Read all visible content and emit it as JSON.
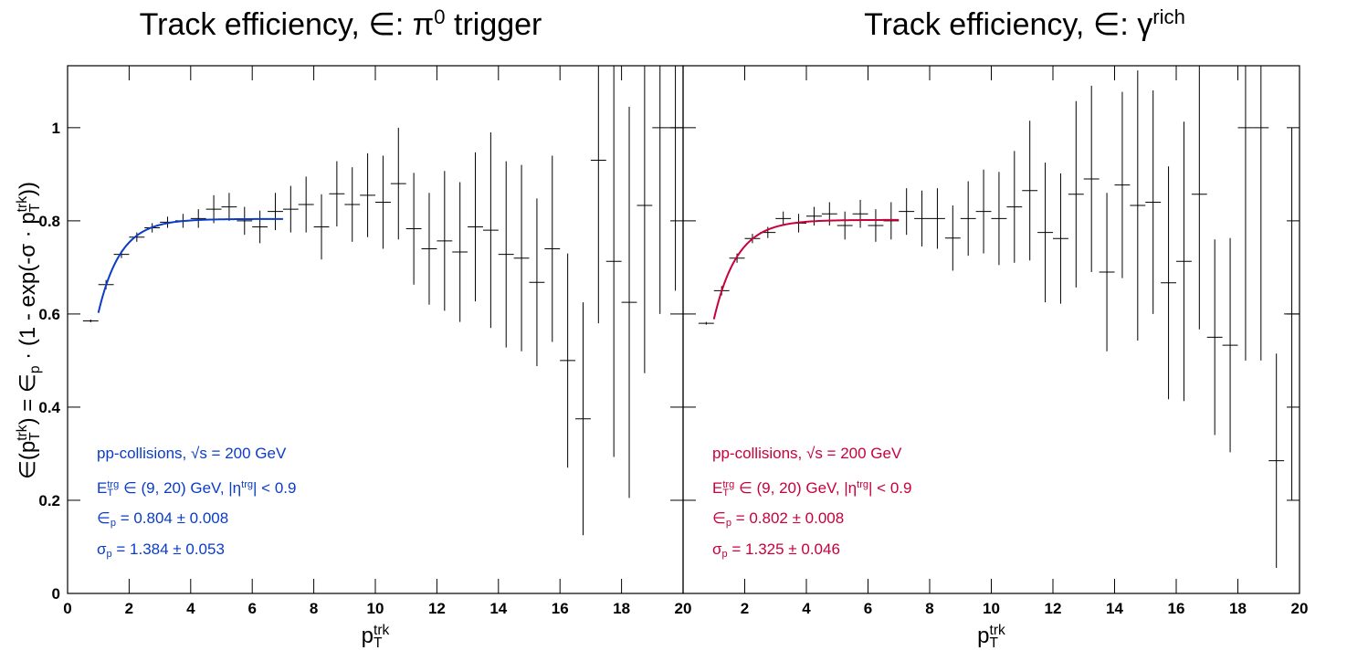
{
  "chart_data": [
    {
      "type": "errorbar",
      "title": [
        {
          "t": "Track efficiency, ∈: π"
        },
        {
          "t": "0",
          "s": "sup"
        },
        {
          "t": " trigger"
        }
      ],
      "xlabel": [
        {
          "t": "p"
        },
        {
          "t": "T",
          "s": "sub"
        },
        {
          "t": "trk",
          "s": "sup"
        }
      ],
      "ylabel": [
        {
          "t": "∈(p"
        },
        {
          "t": "T",
          "s": "sub"
        },
        {
          "t": "trk",
          "s": "sup"
        },
        {
          "t": ") = ∈"
        },
        {
          "t": "p",
          "s": "sub"
        },
        {
          "t": " · (1 - exp(-σ · p"
        },
        {
          "t": "T",
          "s": "sub"
        },
        {
          "t": "trk",
          "s": "sup"
        },
        {
          "t": "))"
        }
      ],
      "color": "#0a3cc8",
      "xlim": [
        0,
        20
      ],
      "ylim": [
        0,
        1.133
      ],
      "xticks": [
        0,
        2,
        4,
        6,
        8,
        10,
        12,
        14,
        16,
        18,
        20
      ],
      "yticks": [
        0,
        0.2,
        0.4,
        0.6,
        0.8,
        1
      ],
      "show_ytick_labels": true,
      "xerr": 0.25,
      "x": [
        0.75,
        1.25,
        1.75,
        2.25,
        2.75,
        3.25,
        3.75,
        4.25,
        4.75,
        5.25,
        5.75,
        6.25,
        6.75,
        7.25,
        7.75,
        8.25,
        8.75,
        9.25,
        9.75,
        10.25,
        10.75,
        11.25,
        11.75,
        12.25,
        12.75,
        13.25,
        13.75,
        14.25,
        14.75,
        15.25,
        15.75,
        16.25,
        16.75,
        17.25,
        17.75,
        18.25,
        18.75,
        19.25,
        19.75
      ],
      "values": [
        0.585,
        0.663,
        0.728,
        0.765,
        0.785,
        0.797,
        0.8,
        0.805,
        0.825,
        0.83,
        0.8,
        0.787,
        0.82,
        0.825,
        0.835,
        0.787,
        0.858,
        0.835,
        0.855,
        0.84,
        0.88,
        0.783,
        0.74,
        0.757,
        0.733,
        0.787,
        0.78,
        0.728,
        0.72,
        0.668,
        0.74,
        0.5,
        0.375,
        0.93,
        0.713,
        0.625,
        0.833,
        1.0,
        1.0
      ],
      "errors": [
        0.003,
        0.01,
        0.008,
        0.01,
        0.01,
        0.012,
        0.015,
        0.02,
        0.03,
        0.03,
        0.03,
        0.035,
        0.04,
        0.05,
        0.06,
        0.07,
        0.07,
        0.08,
        0.09,
        0.1,
        0.12,
        0.12,
        0.12,
        0.15,
        0.15,
        0.16,
        0.21,
        0.2,
        0.2,
        0.18,
        0.2,
        0.23,
        0.25,
        0.35,
        0.42,
        0.42,
        0.36,
        0.4,
        0.35
      ],
      "fit": {
        "eps_p": 0.804,
        "eps_err": 0.008,
        "sigma": 1.384,
        "sigma_err": 0.053,
        "range": [
          1,
          7
        ]
      },
      "annotations": [
        [
          {
            "t": "pp-collisions, √s = 200 GeV"
          }
        ],
        [
          {
            "t": "E"
          },
          {
            "t": "T",
            "s": "sub"
          },
          {
            "t": "trg",
            "s": "sup"
          },
          {
            "t": " ∈ (9, 20) GeV, |η"
          },
          {
            "t": "trg",
            "s": "sup"
          },
          {
            "t": "| < 0.9"
          }
        ],
        [
          {
            "t": "∈"
          },
          {
            "t": "p",
            "s": "sub"
          },
          {
            "t": " = "
          },
          {
            "f": "eps_p"
          },
          {
            "t": " ± "
          },
          {
            "f": "eps_err"
          }
        ],
        [
          {
            "t": "σ"
          },
          {
            "t": "p",
            "s": "sub"
          },
          {
            "t": " = "
          },
          {
            "f": "sigma"
          },
          {
            "t": " ± "
          },
          {
            "f": "sigma_err"
          }
        ]
      ]
    },
    {
      "type": "errorbar",
      "title": [
        {
          "t": "Track efficiency, ∈: γ"
        },
        {
          "t": "rich",
          "s": "sup"
        }
      ],
      "xlabel": [
        {
          "t": "p"
        },
        {
          "t": "T",
          "s": "sub"
        },
        {
          "t": "trk",
          "s": "sup"
        }
      ],
      "color": "#c8003c",
      "xlim": [
        0,
        20
      ],
      "ylim": [
        0,
        1.133
      ],
      "xticks": [
        2,
        4,
        6,
        8,
        10,
        12,
        14,
        16,
        18,
        20
      ],
      "yticks": [
        0,
        0.2,
        0.4,
        0.6,
        0.8,
        1
      ],
      "show_ytick_labels": false,
      "xerr": 0.25,
      "x": [
        0.75,
        1.25,
        1.75,
        2.25,
        2.75,
        3.25,
        3.75,
        4.25,
        4.75,
        5.25,
        5.75,
        6.25,
        6.75,
        7.25,
        7.75,
        8.25,
        8.75,
        9.25,
        9.75,
        10.25,
        10.75,
        11.25,
        11.75,
        12.25,
        12.75,
        13.25,
        13.75,
        14.25,
        14.75,
        15.25,
        15.75,
        16.25,
        16.75,
        17.25,
        17.75,
        18.25,
        18.75,
        19.25,
        19.75
      ],
      "values": [
        0.58,
        0.65,
        0.72,
        0.762,
        0.775,
        0.805,
        0.795,
        0.81,
        0.815,
        0.79,
        0.815,
        0.79,
        0.8,
        0.82,
        0.805,
        0.805,
        0.763,
        0.805,
        0.82,
        0.805,
        0.83,
        0.865,
        0.775,
        0.762,
        0.857,
        0.89,
        0.69,
        0.877,
        0.833,
        0.84,
        0.667,
        0.713,
        0.857,
        0.55,
        0.533,
        1.0,
        1.0,
        0.285,
        0.6
      ],
      "errors": [
        0.003,
        0.01,
        0.01,
        0.01,
        0.012,
        0.015,
        0.02,
        0.02,
        0.025,
        0.03,
        0.03,
        0.035,
        0.04,
        0.05,
        0.06,
        0.065,
        0.07,
        0.08,
        0.09,
        0.1,
        0.12,
        0.15,
        0.15,
        0.14,
        0.2,
        0.2,
        0.17,
        0.2,
        0.29,
        0.24,
        0.25,
        0.3,
        0.29,
        0.21,
        0.23,
        0.5,
        0.5,
        0.23,
        0.4
      ],
      "fit": {
        "eps_p": 0.802,
        "eps_err": 0.008,
        "sigma": 1.325,
        "sigma_err": 0.046,
        "range": [
          1,
          7
        ]
      },
      "annotations": [
        [
          {
            "t": "pp-collisions, √s = 200 GeV"
          }
        ],
        [
          {
            "t": "E"
          },
          {
            "t": "T",
            "s": "sub"
          },
          {
            "t": "trg",
            "s": "sup"
          },
          {
            "t": " ∈ (9, 20) GeV, |η"
          },
          {
            "t": "trg",
            "s": "sup"
          },
          {
            "t": "| < 0.9"
          }
        ],
        [
          {
            "t": "∈"
          },
          {
            "t": "p",
            "s": "sub"
          },
          {
            "t": " = "
          },
          {
            "f": "eps_p"
          },
          {
            "t": " ± "
          },
          {
            "f": "eps_err"
          }
        ],
        [
          {
            "t": "σ"
          },
          {
            "t": "p",
            "s": "sub"
          },
          {
            "t": " = "
          },
          {
            "f": "sigma"
          },
          {
            "t": " ± "
          },
          {
            "f": "sigma_err"
          }
        ]
      ]
    }
  ]
}
